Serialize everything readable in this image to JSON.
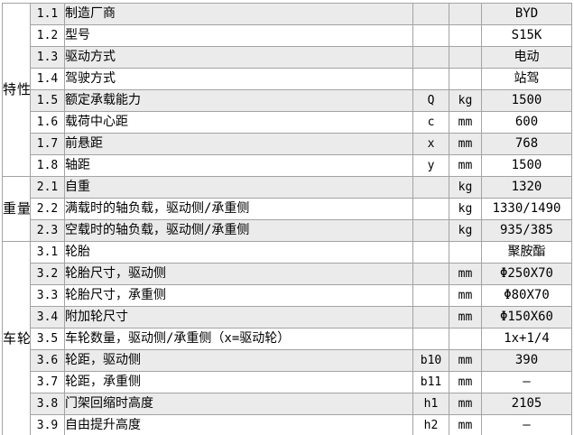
{
  "colors": {
    "row_shade": "#ebebeb",
    "border": "#a3a3a3",
    "text": "#000000",
    "background": "#ffffff"
  },
  "table": {
    "groups": [
      {
        "label": "特性",
        "row_count": 8
      },
      {
        "label": "重量",
        "row_count": 3
      },
      {
        "label": "车轮",
        "row_count": 9
      }
    ],
    "rows": [
      {
        "no": "1.1",
        "desc": "制造厂商",
        "sym": "",
        "unit": "",
        "val": "BYD"
      },
      {
        "no": "1.2",
        "desc": "型号",
        "sym": "",
        "unit": "",
        "val": "S15K"
      },
      {
        "no": "1.3",
        "desc": "驱动方式",
        "sym": "",
        "unit": "",
        "val": "电动"
      },
      {
        "no": "1.4",
        "desc": "驾驶方式",
        "sym": "",
        "unit": "",
        "val": "站驾"
      },
      {
        "no": "1.5",
        "desc": "额定承载能力",
        "sym": "Q",
        "unit": "kg",
        "val": "1500"
      },
      {
        "no": "1.6",
        "desc": "载荷中心距",
        "sym": "c",
        "unit": "mm",
        "val": "600"
      },
      {
        "no": "1.7",
        "desc": "前悬距",
        "sym": "x",
        "unit": "mm",
        "val": "768"
      },
      {
        "no": "1.8",
        "desc": "轴距",
        "sym": "y",
        "unit": "mm",
        "val": "1500"
      },
      {
        "no": "2.1",
        "desc": "自重",
        "sym": "",
        "unit": "kg",
        "val": "1320"
      },
      {
        "no": "2.2",
        "desc": "满载时的轴负载，驱动侧/承重侧",
        "sym": "",
        "unit": "kg",
        "val": "1330/1490"
      },
      {
        "no": "2.3",
        "desc": "空载时的轴负载，驱动侧/承重侧",
        "sym": "",
        "unit": "kg",
        "val": "935/385"
      },
      {
        "no": "3.1",
        "desc": "轮胎",
        "sym": "",
        "unit": "",
        "val": "聚胺酯"
      },
      {
        "no": "3.2",
        "desc": "轮胎尺寸，驱动侧",
        "sym": "",
        "unit": "mm",
        "val": "Φ250X70"
      },
      {
        "no": "3.3",
        "desc": "轮胎尺寸，承重侧",
        "sym": "",
        "unit": "mm",
        "val": "Φ80X70"
      },
      {
        "no": "3.4",
        "desc": "附加轮尺寸",
        "sym": "",
        "unit": "mm",
        "val": "Φ150X60"
      },
      {
        "no": "3.5",
        "desc": "车轮数量，驱动侧/承重侧（x=驱动轮）",
        "sym": "",
        "unit": "",
        "val": "1x+1/4"
      },
      {
        "no": "3.6",
        "desc": "轮距，驱动侧",
        "sym": "b10",
        "unit": "mm",
        "val": "390"
      },
      {
        "no": "3.7",
        "desc": "轮距，承重侧",
        "sym": "b11",
        "unit": "mm",
        "val": "–"
      },
      {
        "no": "3.8",
        "desc": "门架回缩时高度",
        "sym": "h1",
        "unit": "mm",
        "val": "2105"
      },
      {
        "no": "3.9",
        "desc": "自由提升高度",
        "sym": "h2",
        "unit": "mm",
        "val": "–"
      }
    ]
  }
}
